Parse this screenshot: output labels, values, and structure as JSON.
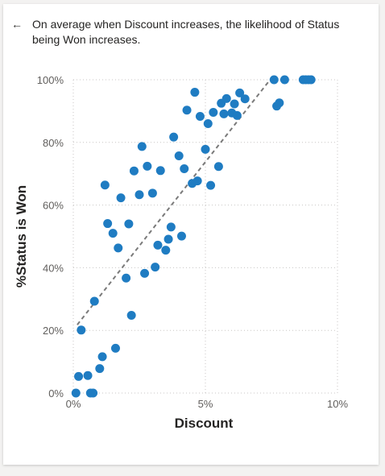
{
  "header": {
    "back_icon": "arrow-left-icon",
    "title": "On average when Discount increases, the likelihood of Status being Won increases."
  },
  "colors": {
    "point": "#1f7cc2",
    "trend": "#7a7a7a",
    "grid": "#c8c6c4"
  },
  "chart_data": {
    "type": "scatter",
    "xlabel": "Discount",
    "ylabel": "%Status is Won",
    "xlim": [
      0,
      10
    ],
    "ylim": [
      0,
      100
    ],
    "x_ticks": [
      0,
      5,
      10
    ],
    "x_tick_labels": [
      "0%",
      "5%",
      "10%"
    ],
    "y_ticks": [
      0,
      20,
      40,
      60,
      80,
      100
    ],
    "y_tick_labels": [
      "0%",
      "20%",
      "40%",
      "60%",
      "80%",
      "100%"
    ],
    "grid": true,
    "trendline": {
      "x": [
        0.15,
        7.45
      ],
      "y": [
        21.8,
        100
      ]
    },
    "points": [
      [
        0.1,
        0
      ],
      [
        0.2,
        5.3
      ],
      [
        0.3,
        20.1
      ],
      [
        0.55,
        5.6
      ],
      [
        0.65,
        0
      ],
      [
        0.75,
        0
      ],
      [
        0.8,
        29.3
      ],
      [
        1.0,
        7.8
      ],
      [
        1.1,
        11.6
      ],
      [
        1.2,
        66.4
      ],
      [
        1.3,
        54.1
      ],
      [
        1.5,
        51
      ],
      [
        1.6,
        14.3
      ],
      [
        1.7,
        46.3
      ],
      [
        1.8,
        62.3
      ],
      [
        2.0,
        36.7
      ],
      [
        2.1,
        54
      ],
      [
        2.2,
        24.8
      ],
      [
        2.3,
        70.9
      ],
      [
        2.5,
        63.3
      ],
      [
        2.6,
        78.7
      ],
      [
        2.7,
        38.2
      ],
      [
        2.8,
        72.4
      ],
      [
        3.0,
        63.8
      ],
      [
        3.1,
        40.2
      ],
      [
        3.2,
        47.2
      ],
      [
        3.3,
        71
      ],
      [
        3.5,
        45.6
      ],
      [
        3.6,
        49.1
      ],
      [
        3.7,
        53
      ],
      [
        3.8,
        81.7
      ],
      [
        4.0,
        75.7
      ],
      [
        4.1,
        50.1
      ],
      [
        4.2,
        71.6
      ],
      [
        4.3,
        90.3
      ],
      [
        4.5,
        66.9
      ],
      [
        4.6,
        96
      ],
      [
        4.7,
        67.7
      ],
      [
        4.8,
        88.3
      ],
      [
        5.0,
        77.8
      ],
      [
        5.1,
        86
      ],
      [
        5.2,
        66.3
      ],
      [
        5.3,
        89.6
      ],
      [
        5.5,
        72.3
      ],
      [
        5.6,
        92.5
      ],
      [
        5.7,
        89.1
      ],
      [
        5.8,
        94
      ],
      [
        6.0,
        89.4
      ],
      [
        6.1,
        92.3
      ],
      [
        6.2,
        88.6
      ],
      [
        6.3,
        95.8
      ],
      [
        6.5,
        93.9
      ],
      [
        7.6,
        100
      ],
      [
        7.7,
        91.6
      ],
      [
        7.8,
        92.6
      ],
      [
        8.0,
        100
      ],
      [
        8.7,
        100
      ],
      [
        8.8,
        100
      ],
      [
        8.9,
        100
      ],
      [
        9.0,
        100
      ]
    ]
  }
}
